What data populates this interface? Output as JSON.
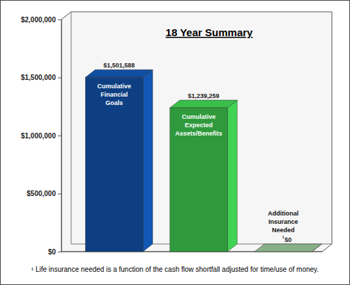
{
  "chart_data": {
    "type": "bar",
    "title": "18 Year Summary",
    "categories": [
      "Cumulative Financial Goals",
      "Cumulative Expected Assets/Benefits",
      "Additional Insurance Needed ¹"
    ],
    "values": [
      1501588,
      1239259,
      0
    ],
    "value_labels": [
      "$1,501,588",
      "$1,239,259",
      "$0"
    ],
    "colors": [
      "#0d3f82",
      "#2f9a3c",
      "#6e8e6e"
    ],
    "ylim": [
      0,
      2000000
    ],
    "yticks": [
      {
        "value": 0,
        "label": "$0"
      },
      {
        "value": 500000,
        "label": "$500,000"
      },
      {
        "value": 1000000,
        "label": "$1,000,000"
      },
      {
        "value": 1500000,
        "label": "$1,500,000"
      },
      {
        "value": 2000000,
        "label": "$2,000,000"
      }
    ],
    "grid": false,
    "data_labels": true,
    "tick_labels": "y",
    "annotations": [
      "¹ Life insurance needed is a function of the cash flow shortfall adjusted for time/use of money."
    ]
  }
}
